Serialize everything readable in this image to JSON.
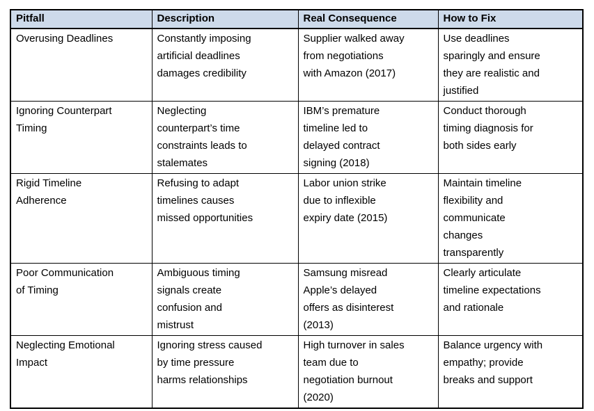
{
  "colors": {
    "header_bg": "#cddaea",
    "border": "#000000",
    "text": "#000000",
    "page_bg": "#ffffff"
  },
  "table": {
    "headers": [
      "Pitfall",
      "Description",
      "Real Consequence",
      "How to Fix"
    ],
    "rows": [
      {
        "pitfall": "Overusing Deadlines",
        "description": "Constantly imposing\nartificial deadlines\ndamages credibility",
        "consequence": "Supplier walked away\nfrom negotiations\nwith Amazon (2017)",
        "fix": "Use deadlines\nsparingly and ensure\nthey are realistic and\njustified"
      },
      {
        "pitfall": "Ignoring Counterpart\nTiming",
        "description": "Neglecting\ncounterpart’s time\nconstraints leads to\nstalemates",
        "consequence": "IBM’s premature\ntimeline led to\ndelayed contract\nsigning (2018)",
        "fix": "Conduct thorough\ntiming diagnosis for\nboth sides early"
      },
      {
        "pitfall": "Rigid Timeline\nAdherence",
        "description": "Refusing to adapt\ntimelines causes\nmissed opportunities",
        "consequence": "Labor union strike\ndue to inflexible\nexpiry date (2015)",
        "fix": "Maintain timeline\nflexibility and\ncommunicate\nchanges\ntransparently"
      },
      {
        "pitfall": "Poor Communication\nof Timing",
        "description": "Ambiguous timing\nsignals create\nconfusion and\nmistrust",
        "consequence": "Samsung misread\nApple’s delayed\noffers as disinterest\n(2013)",
        "fix": "Clearly articulate\ntimeline expectations\nand rationale"
      },
      {
        "pitfall": "Neglecting Emotional\nImpact",
        "description": "Ignoring stress caused\nby time pressure\nharms relationships",
        "consequence": "High turnover in sales\nteam due to\nnegotiation burnout\n(2020)",
        "fix": "Balance urgency with\nempathy; provide\nbreaks and support"
      }
    ]
  }
}
